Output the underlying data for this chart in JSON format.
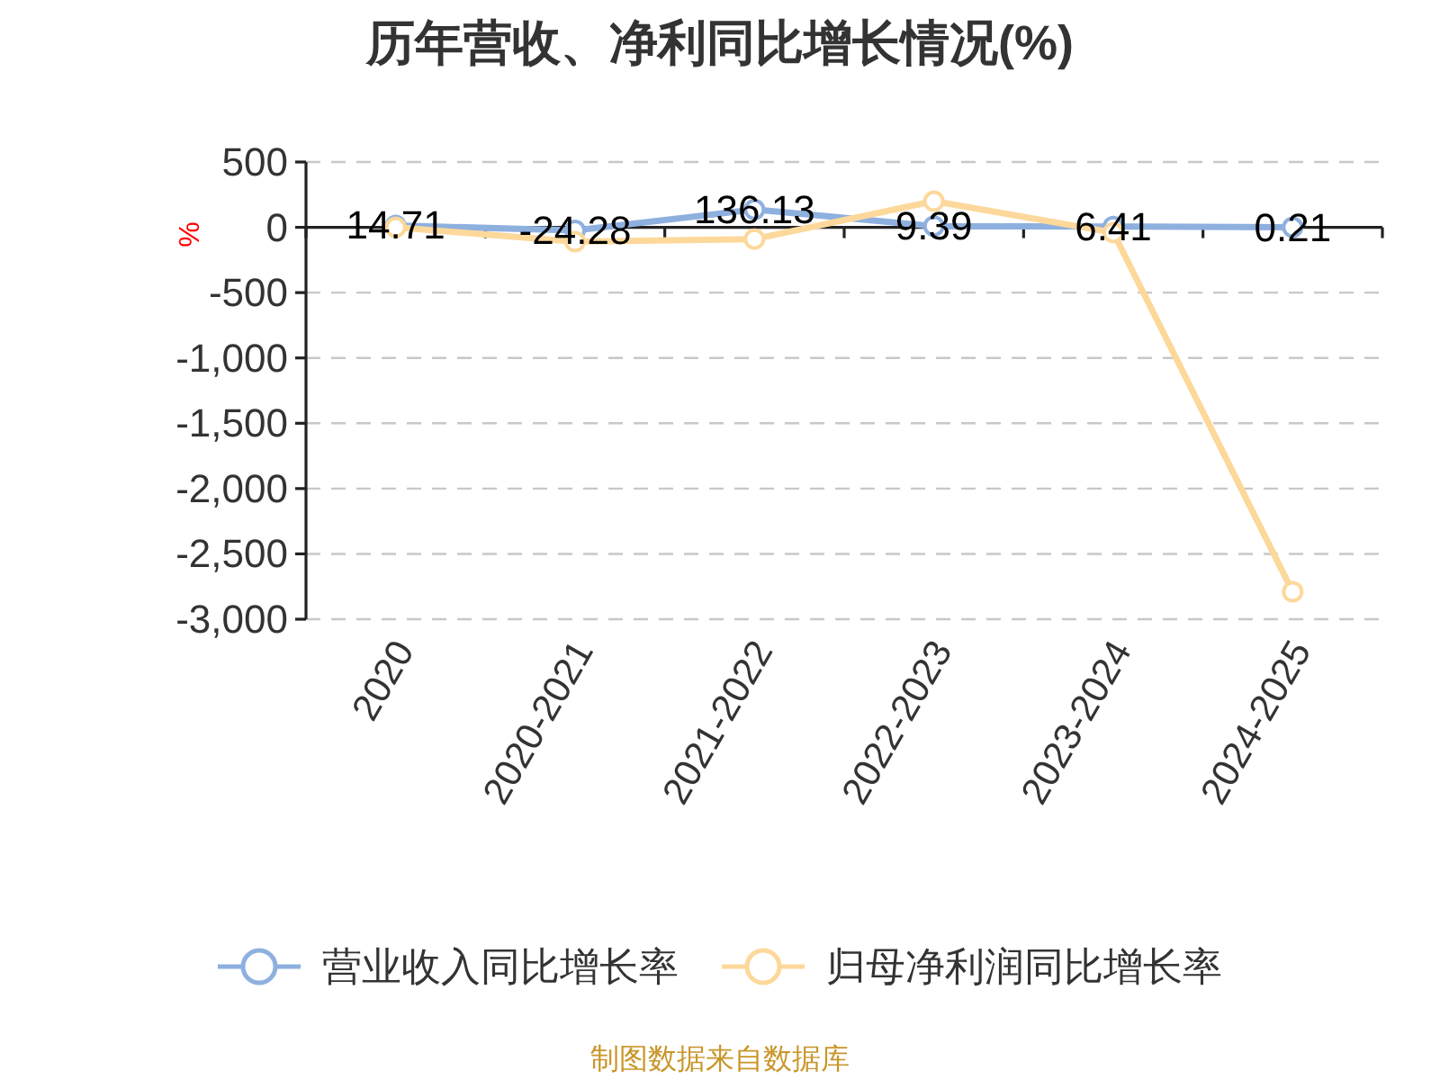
{
  "chart_data": {
    "type": "line",
    "title": "历年营收、净利同比增长情况(%)",
    "ylabel": "%",
    "categories": [
      "2020",
      "2020-2021",
      "2021-2022",
      "2022-2023",
      "2023-2024",
      "2024-2025"
    ],
    "series": [
      {
        "name": "营业收入同比增长率",
        "color": "#8eb0df",
        "values": [
          14.71,
          -24.28,
          136.13,
          9.39,
          6.41,
          0.21
        ],
        "value_labels": [
          "14.71",
          "-24.28",
          "136.13",
          "9.39",
          "6.41",
          "0.21"
        ]
      },
      {
        "name": "归母净利润同比增长率",
        "color": "#fdd89b",
        "values": [
          0,
          -110,
          -90,
          200,
          -40,
          -2790
        ]
      }
    ],
    "ylim": [
      -3000,
      500
    ],
    "yticks": [
      {
        "value": -3000,
        "label": "-3,000"
      },
      {
        "value": -2500,
        "label": "-2,500"
      },
      {
        "value": -2000,
        "label": "-2,000"
      },
      {
        "value": -1500,
        "label": "-1,500"
      },
      {
        "value": -1000,
        "label": "-1,000"
      },
      -500,
      0,
      500
    ],
    "grid": "y",
    "legend": "bottom",
    "marker": "circle",
    "annotations": [
      "制图数据来自数据库"
    ]
  }
}
